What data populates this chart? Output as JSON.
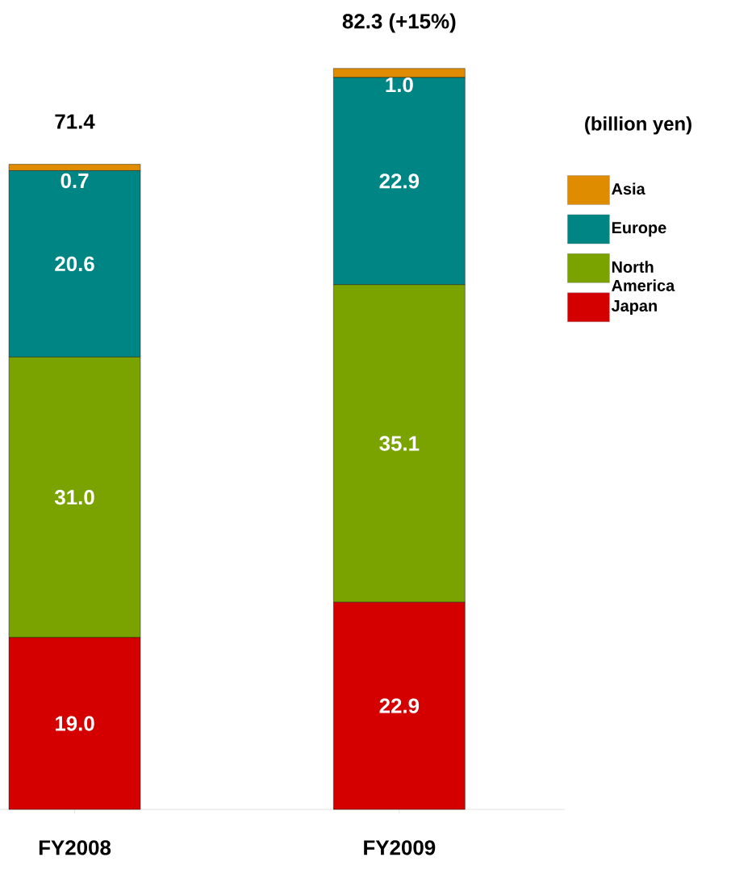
{
  "chart_data": {
    "type": "bar",
    "stacked": true,
    "categories": [
      "FY2008",
      "FY2009"
    ],
    "series": [
      {
        "name": "Japan",
        "color": "#d40000",
        "values": [
          19.0,
          22.9
        ],
        "value_labels": [
          "19.0",
          "22.9"
        ]
      },
      {
        "name": "North America",
        "color": "#7aa300",
        "values": [
          31.0,
          35.1
        ],
        "value_labels": [
          "31.0",
          "35.1"
        ]
      },
      {
        "name": "Europe",
        "color": "#008585",
        "values": [
          20.6,
          22.9
        ],
        "value_labels": [
          "20.6",
          "22.9"
        ]
      },
      {
        "name": "Asia",
        "color": "#e08c00",
        "values": [
          0.7,
          1.0
        ],
        "value_labels": [
          "0.7",
          "1.0"
        ]
      }
    ],
    "totals": [
      "71.4",
      "82.3 (+15%)"
    ],
    "legend": "right",
    "annotations": [
      "(billion yen)"
    ]
  }
}
